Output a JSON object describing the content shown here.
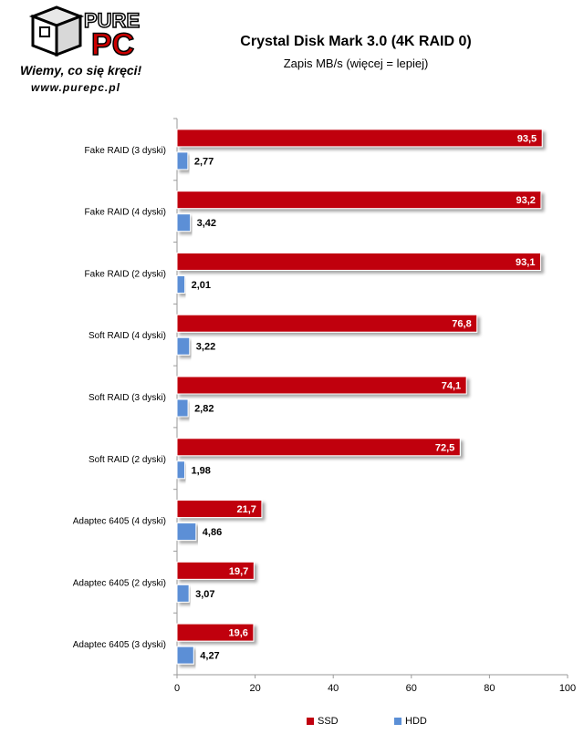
{
  "brand": {
    "logo_top": "PURE",
    "logo_bottom": "PC",
    "slogan": "Wiemy, co się kręci!",
    "url": "www.purepc.pl"
  },
  "chart_data": {
    "type": "bar",
    "orientation": "horizontal",
    "title": "Crystal Disk Mark 3.0 (4K RAID 0)",
    "subtitle": "Zapis MB/s (więcej = lepiej)",
    "categories": [
      "Fake RAID (3 dyski)",
      "Fake RAID (4 dyski)",
      "Fake RAID (2 dyski)",
      "Soft RAID (4 dyski)",
      "Soft RAID (3 dyski)",
      "Soft RAID (2 dyski)",
      "Adaptec 6405 (4 dyski)",
      "Adaptec 6405 (2 dyski)",
      "Adaptec 6405 (3 dyski)"
    ],
    "series": [
      {
        "name": "SSD",
        "color": "#c0000f",
        "values": [
          93.5,
          93.2,
          93.1,
          76.8,
          74.1,
          72.5,
          21.7,
          19.7,
          19.6
        ],
        "labels": [
          "93,5",
          "93,2",
          "93,1",
          "76,8",
          "74,1",
          "72,5",
          "21,7",
          "19,7",
          "19,6"
        ]
      },
      {
        "name": "HDD",
        "color": "#5b8fd6",
        "values": [
          2.77,
          3.42,
          2.01,
          3.22,
          2.82,
          1.98,
          4.86,
          3.07,
          4.27
        ],
        "labels": [
          "2,77",
          "3,42",
          "2,01",
          "3,22",
          "2,82",
          "1,98",
          "4,86",
          "3,07",
          "4,27"
        ]
      }
    ],
    "xlim": [
      0,
      100
    ],
    "xticks": [
      "0",
      "20",
      "40",
      "60",
      "80",
      "100"
    ],
    "grid": false,
    "legend_position": "bottom"
  }
}
